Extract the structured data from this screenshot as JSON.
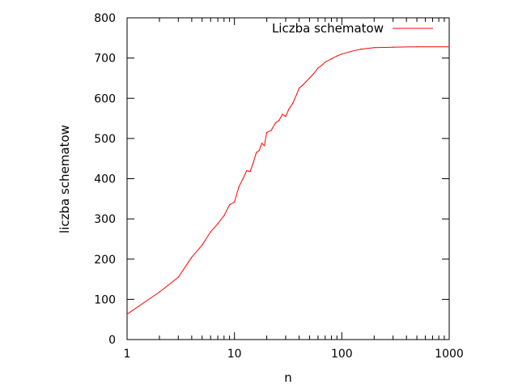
{
  "chart_data": {
    "type": "line",
    "title": "",
    "xlabel": "n",
    "ylabel": "liczba schematow",
    "xscale": "log",
    "xlim": [
      1,
      1000
    ],
    "ylim": [
      0,
      800
    ],
    "x_ticks": [
      {
        "value": 1,
        "label": "1"
      },
      {
        "value": 10,
        "label": "10"
      },
      {
        "value": 100,
        "label": "100"
      },
      {
        "value": 1000,
        "label": "1000"
      }
    ],
    "y_ticks": [
      {
        "value": 0,
        "label": "0"
      },
      {
        "value": 100,
        "label": "100"
      },
      {
        "value": 200,
        "label": "200"
      },
      {
        "value": 300,
        "label": "300"
      },
      {
        "value": 400,
        "label": "400"
      },
      {
        "value": 500,
        "label": "500"
      },
      {
        "value": 600,
        "label": "600"
      },
      {
        "value": 700,
        "label": "700"
      },
      {
        "value": 800,
        "label": "800"
      }
    ],
    "grid": false,
    "legend_position": "top-right",
    "series": [
      {
        "name": "Liczba schematow",
        "color": "#ff0000",
        "x": [
          1,
          2,
          3,
          4,
          5,
          6,
          7,
          8,
          9,
          10,
          11,
          12,
          13,
          14,
          15,
          16,
          17,
          18,
          19,
          20,
          22,
          24,
          26,
          28,
          30,
          32,
          35,
          38,
          40,
          43,
          46,
          50,
          55,
          60,
          65,
          70,
          80,
          90,
          100,
          120,
          150,
          200,
          300,
          500,
          1000
        ],
        "values": [
          63,
          118,
          155,
          205,
          235,
          268,
          288,
          308,
          335,
          342,
          380,
          400,
          420,
          418,
          440,
          465,
          470,
          488,
          482,
          515,
          520,
          538,
          545,
          560,
          555,
          572,
          588,
          610,
          625,
          632,
          640,
          650,
          662,
          675,
          682,
          690,
          698,
          705,
          710,
          716,
          722,
          726,
          727,
          728,
          728
        ]
      }
    ]
  }
}
